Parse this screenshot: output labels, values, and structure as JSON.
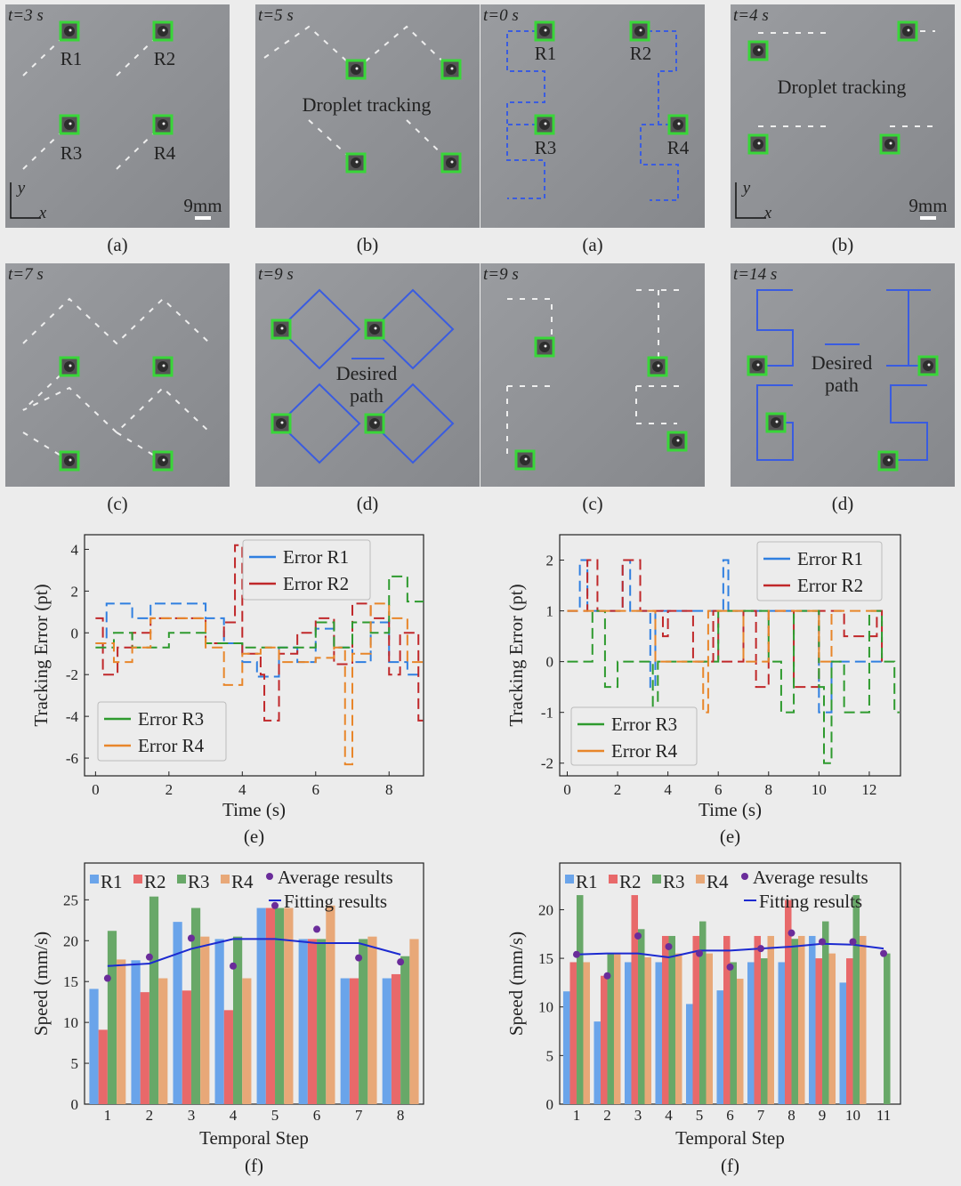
{
  "panels": [
    {
      "time": "t=3 s",
      "labels": [
        "R1",
        "R2",
        "R3",
        "R4"
      ],
      "scale": "9mm",
      "axis_y": "y",
      "axis_x": "x",
      "caption": "(a)"
    },
    {
      "time": "t=5 s",
      "text": [
        "Droplet tracking"
      ],
      "caption": "(b)"
    },
    {
      "time": "t=0 s",
      "labels": [
        "R1",
        "R2",
        "R3",
        "R4"
      ],
      "caption": "(a)"
    },
    {
      "time": "t=4 s",
      "text": [
        "Droplet tracking"
      ],
      "scale": "9mm",
      "axis_y": "y",
      "axis_x": "x",
      "caption": "(b)"
    },
    {
      "time": "t=7 s",
      "caption": "(c)"
    },
    {
      "time": "t=9 s",
      "text": [
        "Desired",
        "path"
      ],
      "caption": "(d)"
    },
    {
      "time": "t=9 s",
      "caption": "(c)"
    },
    {
      "time": "t=14 s",
      "text": [
        "Desired",
        "path"
      ],
      "caption": "(d)"
    }
  ],
  "colors": {
    "R1": "#2f7fe0",
    "R2": "#c0282a",
    "R3": "#2e9a2e",
    "R4": "#e8862a",
    "bar_R1": "#6aa4ea",
    "bar_R2": "#e8696a",
    "bar_R3": "#68a868",
    "bar_R4": "#e8a878",
    "average": "#6a2c9a",
    "fit": "#1c2ad0",
    "marker": "#39d639",
    "path": "#3a5ce0"
  },
  "chart_data": [
    {
      "type": "line",
      "caption": "(e)",
      "xlabel": "Time (s)",
      "ylabel": "Tracking Error (pt)",
      "xlim": [
        -0.3,
        8.94
      ],
      "ylim": [
        -6.85,
        4.7
      ],
      "xticks": [
        0,
        2,
        4,
        6,
        8
      ],
      "yticks": [
        4,
        2,
        0,
        -2,
        -4,
        -6
      ],
      "series": [
        {
          "name": "Error R1",
          "x": [
            0,
            0.3,
            0.7,
            1,
            1.5,
            2.5,
            3,
            3.5,
            4,
            4.4,
            5,
            5.5,
            6,
            6.5,
            7,
            7.5,
            8,
            8.5,
            9
          ],
          "y": [
            -0.5,
            1.4,
            1.4,
            0.7,
            1.4,
            1.4,
            0.7,
            -0.5,
            -1.4,
            -2.1,
            -0.7,
            -1.4,
            0.2,
            -0.7,
            -1.4,
            0.5,
            -1.4,
            -2,
            -0.7
          ]
        },
        {
          "name": "Error R2",
          "x": [
            0,
            0.2,
            0.6,
            1,
            1.5,
            2,
            2.5,
            3,
            3.5,
            3.8,
            4,
            4.5,
            4.6,
            5,
            5.5,
            6,
            6.5,
            7,
            7.5,
            8,
            8.3,
            8.8,
            9
          ],
          "y": [
            0.7,
            -2,
            -0.7,
            0,
            0.7,
            0.7,
            0.7,
            -0.5,
            0.5,
            4.2,
            -1,
            -2,
            -4.2,
            -1,
            0,
            0.7,
            -1.5,
            1.4,
            0.7,
            -2,
            0,
            -4.2,
            -1
          ]
        },
        {
          "name": "Error R3",
          "x": [
            0,
            0.5,
            1,
            2,
            2.5,
            3,
            4,
            5,
            5.5,
            6,
            6.5,
            7,
            7.5,
            8,
            8.5,
            9
          ],
          "y": [
            -0.7,
            0,
            -0.7,
            0,
            0,
            -0.5,
            -0.7,
            -0.7,
            -0.7,
            0.5,
            -0.7,
            0.5,
            0,
            2.7,
            1.5,
            0.7
          ]
        },
        {
          "name": "Error R4",
          "x": [
            0,
            0.5,
            1,
            1.5,
            2,
            2.5,
            3,
            3.5,
            4,
            4.5,
            5,
            5.5,
            6,
            6.5,
            6.8,
            7,
            7.5,
            8,
            8.5,
            9
          ],
          "y": [
            -0.5,
            -1.4,
            -0.7,
            0.7,
            0.7,
            0.7,
            -0.7,
            -2.5,
            -1,
            -0.7,
            -1.4,
            -1.4,
            -1.2,
            -0.7,
            -6.3,
            -1,
            1.4,
            0.7,
            -1.4,
            0
          ]
        }
      ]
    },
    {
      "type": "line",
      "caption": "(e)",
      "xlabel": "Time (s)",
      "ylabel": "Tracking Error (pt)",
      "xlim": [
        -0.3,
        13.24
      ],
      "ylim": [
        -2.25,
        2.5
      ],
      "xticks": [
        0,
        2,
        4,
        6,
        8,
        10,
        12
      ],
      "yticks": [
        2,
        1,
        0,
        -1,
        -2
      ],
      "series": [
        {
          "name": "Error R1",
          "x": [
            0,
            0.5,
            0.8,
            2.2,
            2.5,
            3.3,
            3.5,
            6.1,
            6.2,
            6.4,
            9,
            10,
            10.5,
            12.5
          ],
          "y": [
            1,
            2,
            1,
            2,
            1,
            -0.5,
            1,
            1,
            2,
            1,
            1,
            -1,
            0,
            0
          ]
        },
        {
          "name": "Error R2",
          "x": [
            0,
            0.8,
            1.2,
            2.2,
            2.9,
            3.8,
            4,
            5,
            5.8,
            6,
            7,
            7.5,
            8,
            9,
            10,
            11,
            12.3,
            12.5
          ],
          "y": [
            1,
            2,
            1,
            2,
            1,
            0.5,
            1,
            0,
            1,
            0,
            1,
            -0.5,
            1,
            -0.5,
            1,
            0.5,
            1,
            0
          ]
        },
        {
          "name": "Error R3",
          "x": [
            0,
            0.8,
            1,
            1.5,
            2,
            3.2,
            3.4,
            3.6,
            5,
            6,
            8,
            8.5,
            9,
            10,
            10.2,
            10.5,
            11,
            12,
            12.5,
            13,
            13.2
          ],
          "y": [
            0,
            0,
            1,
            -0.5,
            0,
            0,
            -1,
            0,
            0,
            1,
            0,
            -1,
            1,
            -0.5,
            -2,
            0,
            -1,
            1,
            0,
            -1,
            -1
          ]
        },
        {
          "name": "Error R4",
          "x": [
            0,
            3,
            3.5,
            5,
            5.4,
            5.6,
            6,
            7,
            8,
            9,
            10,
            10.5,
            12.5
          ],
          "y": [
            1,
            1,
            0,
            0,
            -1,
            1,
            1,
            0,
            1,
            1,
            0,
            1,
            1
          ]
        }
      ]
    },
    {
      "type": "bar",
      "caption": "(f)",
      "xlabel": "Temporal Step",
      "ylabel": "Speed (mm/s)",
      "ylim": [
        0,
        29.5
      ],
      "yticks": [
        0,
        5,
        10,
        15,
        20,
        25
      ],
      "categories": [
        "1",
        "2",
        "3",
        "4",
        "5",
        "6",
        "7",
        "8"
      ],
      "series": [
        {
          "name": "R1",
          "values": [
            14.1,
            17.6,
            22.3,
            20.2,
            24.0,
            20.2,
            15.4,
            15.4
          ]
        },
        {
          "name": "R2",
          "values": [
            9.1,
            13.7,
            13.9,
            11.5,
            24.0,
            20.2,
            15.4,
            15.9
          ]
        },
        {
          "name": "R3",
          "values": [
            21.2,
            25.4,
            24.0,
            20.5,
            24.0,
            20.2,
            20.2,
            18.1
          ]
        },
        {
          "name": "R4",
          "values": [
            17.7,
            15.4,
            20.5,
            15.4,
            24.0,
            24.3,
            20.5,
            20.2
          ]
        }
      ],
      "average": {
        "name": "Average results",
        "values": [
          15.4,
          18.0,
          20.3,
          16.9,
          24.3,
          21.4,
          17.9,
          17.4
        ]
      },
      "fit": {
        "name": "Fitting results",
        "values": [
          16.9,
          17.2,
          19.0,
          20.2,
          20.2,
          19.7,
          19.7,
          18.3
        ]
      }
    },
    {
      "type": "bar",
      "caption": "(f)",
      "xlabel": "Temporal Step",
      "ylabel": "Speed (mm/s)",
      "ylim": [
        0,
        24.8
      ],
      "yticks": [
        0,
        5,
        10,
        15,
        20
      ],
      "categories": [
        "1",
        "2",
        "3",
        "4",
        "5",
        "6",
        "7",
        "8",
        "9",
        "10",
        "11"
      ],
      "series": [
        {
          "name": "R1",
          "values": [
            11.6,
            8.5,
            14.6,
            14.6,
            10.3,
            11.7,
            14.6,
            14.6,
            17.3,
            12.5,
            null
          ]
        },
        {
          "name": "R2",
          "values": [
            14.6,
            13.2,
            21.5,
            17.3,
            17.3,
            17.3,
            17.3,
            21.0,
            15.0,
            15.0,
            null
          ]
        },
        {
          "name": "R3",
          "values": [
            21.5,
            15.5,
            18.0,
            17.3,
            18.8,
            14.6,
            15.0,
            17.0,
            18.8,
            21.5,
            15.5
          ]
        },
        {
          "name": "R4",
          "values": [
            14.6,
            15.5,
            15.1,
            15.5,
            15.5,
            12.9,
            17.3,
            17.3,
            15.5,
            17.3,
            null
          ]
        }
      ],
      "average": {
        "name": "Average results",
        "values": [
          15.4,
          13.2,
          17.3,
          16.2,
          15.5,
          14.1,
          16.0,
          17.6,
          16.7,
          16.7,
          15.5
        ]
      },
      "fit": {
        "name": "Fitting results",
        "values": [
          15.4,
          15.5,
          15.5,
          15.1,
          15.8,
          15.8,
          16.0,
          16.2,
          16.5,
          16.4,
          16.0
        ]
      }
    }
  ]
}
